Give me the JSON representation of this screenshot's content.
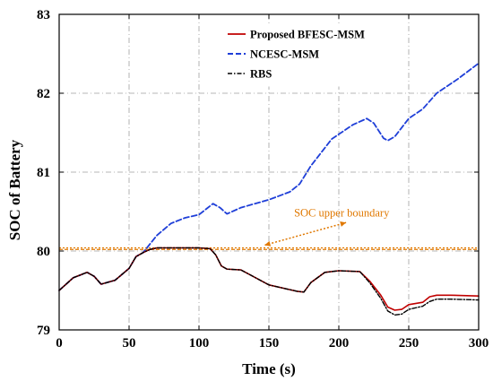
{
  "chart_data": {
    "type": "line",
    "title": "",
    "xlabel": "Time (s)",
    "ylabel": "SOC of Battery",
    "xlim": [
      0,
      300
    ],
    "ylim": [
      79,
      83
    ],
    "xticks": [
      0,
      50,
      100,
      150,
      200,
      250,
      300
    ],
    "yticks": [
      79,
      80,
      81,
      82,
      83
    ],
    "grid": true,
    "legend_position": "top-right",
    "colors": {
      "proposed": "#c00000",
      "ncesc": "#1f3fd8",
      "rbs": "#000000",
      "boundary": "#e07800",
      "grid": "#a0a0a0"
    },
    "series": [
      {
        "name": "Proposed BFESC-MSM",
        "style": "solid",
        "x": [
          0,
          10,
          20,
          25,
          30,
          40,
          50,
          55,
          60,
          65,
          70,
          80,
          90,
          100,
          108,
          112,
          116,
          120,
          130,
          150,
          170,
          175,
          180,
          190,
          200,
          215,
          222,
          230,
          235,
          240,
          245,
          250,
          260,
          265,
          270,
          280,
          300
        ],
        "y": [
          79.5,
          79.66,
          79.73,
          79.68,
          79.58,
          79.63,
          79.78,
          79.93,
          79.98,
          80.02,
          80.04,
          80.04,
          80.04,
          80.04,
          80.03,
          79.95,
          79.81,
          79.77,
          79.76,
          79.57,
          79.49,
          79.48,
          79.6,
          79.73,
          79.75,
          79.74,
          79.62,
          79.44,
          79.29,
          79.25,
          79.26,
          79.32,
          79.35,
          79.42,
          79.44,
          79.44,
          79.43
        ]
      },
      {
        "name": "NCESC-MSM",
        "style": "dashed",
        "x": [
          0,
          10,
          20,
          25,
          30,
          40,
          50,
          55,
          60,
          70,
          80,
          90,
          100,
          110,
          115,
          120,
          130,
          150,
          165,
          172,
          180,
          195,
          210,
          220,
          225,
          232,
          235,
          240,
          250,
          260,
          270,
          285,
          300
        ],
        "y": [
          79.5,
          79.66,
          79.73,
          79.68,
          79.58,
          79.63,
          79.78,
          79.93,
          79.98,
          80.2,
          80.35,
          80.42,
          80.46,
          80.6,
          80.55,
          80.47,
          80.55,
          80.65,
          80.75,
          80.85,
          81.08,
          81.42,
          81.6,
          81.68,
          81.62,
          81.43,
          81.4,
          81.45,
          81.68,
          81.8,
          82.0,
          82.18,
          82.38
        ]
      },
      {
        "name": "RBS",
        "style": "dashdot",
        "x": [
          0,
          10,
          20,
          25,
          30,
          40,
          50,
          55,
          60,
          65,
          70,
          80,
          90,
          100,
          108,
          112,
          116,
          120,
          130,
          150,
          170,
          175,
          180,
          190,
          200,
          215,
          222,
          230,
          235,
          240,
          245,
          250,
          260,
          265,
          270,
          280,
          300
        ],
        "y": [
          79.5,
          79.66,
          79.73,
          79.68,
          79.58,
          79.63,
          79.78,
          79.93,
          79.98,
          80.02,
          80.04,
          80.04,
          80.04,
          80.04,
          80.03,
          79.95,
          79.81,
          79.77,
          79.76,
          79.57,
          79.49,
          79.48,
          79.6,
          79.73,
          79.75,
          79.74,
          79.6,
          79.4,
          79.24,
          79.19,
          79.2,
          79.26,
          79.3,
          79.36,
          79.39,
          79.39,
          79.38
        ]
      }
    ],
    "reference_lines": [
      {
        "y": 80.04,
        "label": ""
      },
      {
        "y": 80.02,
        "label": ""
      }
    ],
    "annotations": [
      {
        "text": "SOC upper boundary",
        "arrow_to": {
          "x": 145,
          "y": 80.04
        },
        "text_at": {
          "x": 168,
          "y": 80.44
        }
      }
    ]
  }
}
